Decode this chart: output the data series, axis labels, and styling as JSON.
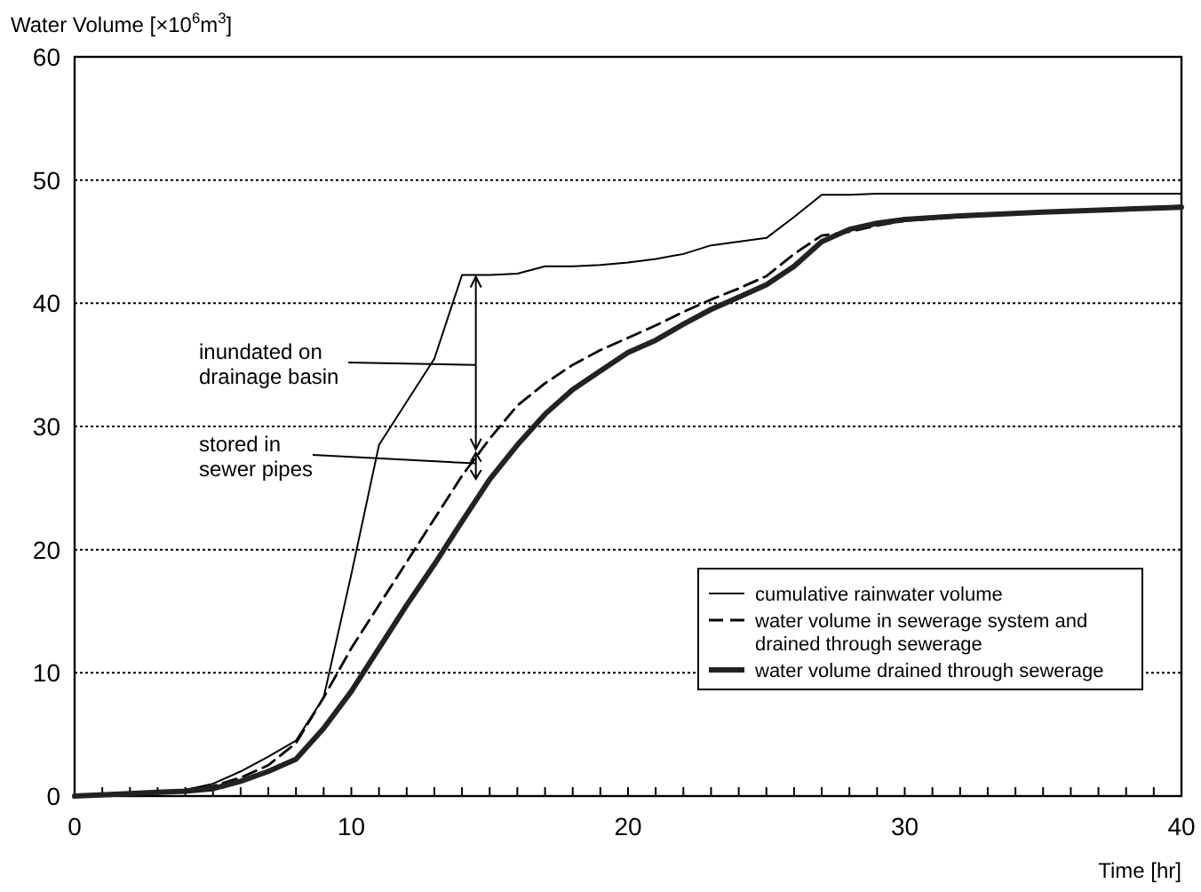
{
  "chart_data": {
    "type": "line",
    "ylabel": "Water Volume [×10$^{6}$m$^{3}$]",
    "xlabel": "Time [hr]",
    "x": [
      0,
      2,
      3,
      4,
      5,
      6,
      7,
      8,
      9,
      10,
      11,
      12,
      13,
      14,
      15,
      16,
      17,
      18,
      19,
      20,
      21,
      22,
      23,
      24,
      25,
      26,
      27,
      28,
      29,
      30,
      32,
      35,
      40
    ],
    "series": [
      {
        "name": "cumulative rainwater volume",
        "color": "#000000",
        "line_style": "solid",
        "values": [
          0,
          0.2,
          0.3,
          0.5,
          1,
          2,
          3.2,
          4.5,
          8,
          18,
          28.5,
          32,
          35.5,
          42.3,
          42.3,
          42.4,
          43,
          43,
          43.1,
          43.3,
          43.6,
          44,
          44.7,
          45,
          45.3,
          47,
          48.8,
          48.8,
          48.9,
          48.9,
          48.9,
          48.9,
          48.9
        ]
      },
      {
        "name": "water volume in sewerage system and drained through sewerage",
        "color": "#000000",
        "line_style": "dashed",
        "values": [
          0,
          0.2,
          0.3,
          0.5,
          0.8,
          1.5,
          2.5,
          4.3,
          8,
          12,
          15.5,
          19,
          22.5,
          26,
          29,
          31.7,
          33.5,
          35,
          36.2,
          37.2,
          38.2,
          39.3,
          40.3,
          41.2,
          42.2,
          44,
          45.5,
          45.8,
          46.3,
          46.7,
          47,
          47.4,
          47.9
        ]
      },
      {
        "name": "water volume drained through sewerage",
        "color": "#222222",
        "line_style": "solid",
        "values": [
          0,
          0.2,
          0.3,
          0.4,
          0.6,
          1.2,
          2,
          3,
          5.5,
          8.5,
          12,
          15.5,
          18.8,
          22.3,
          25.7,
          28.5,
          31,
          33,
          34.5,
          36,
          37,
          38.3,
          39.5,
          40.5,
          41.5,
          43,
          45,
          46,
          46.5,
          46.8,
          47.1,
          47.4,
          47.8
        ]
      }
    ],
    "xlim": [
      0,
      40
    ],
    "xticks": [
      0,
      {
        "value": 1,
        "label": null
      },
      {
        "value": 2,
        "label": null
      },
      {
        "value": 3,
        "label": null
      },
      {
        "value": 4,
        "label": null
      },
      {
        "value": 5,
        "label": null
      },
      {
        "value": 6,
        "label": null
      },
      {
        "value": 7,
        "label": null
      },
      {
        "value": 8,
        "label": null
      },
      {
        "value": 9,
        "label": null
      },
      10,
      {
        "value": 11,
        "label": null
      },
      {
        "value": 12,
        "label": null
      },
      {
        "value": 13,
        "label": null
      },
      {
        "value": 14,
        "label": null
      },
      {
        "value": 15,
        "label": null
      },
      {
        "value": 16,
        "label": null
      },
      {
        "value": 17,
        "label": null
      },
      {
        "value": 18,
        "label": null
      },
      {
        "value": 19,
        "label": null
      },
      20,
      {
        "value": 21,
        "label": null
      },
      {
        "value": 22,
        "label": null
      },
      {
        "value": 23,
        "label": null
      },
      {
        "value": 24,
        "label": null
      },
      {
        "value": 25,
        "label": null
      },
      {
        "value": 26,
        "label": null
      },
      {
        "value": 27,
        "label": null
      },
      {
        "value": 28,
        "label": null
      },
      {
        "value": 29,
        "label": null
      },
      30,
      {
        "value": 31,
        "label": null
      },
      {
        "value": 32,
        "label": null
      },
      {
        "value": 33,
        "label": null
      },
      {
        "value": 34,
        "label": null
      },
      {
        "value": 35,
        "label": null
      },
      {
        "value": 36,
        "label": null
      },
      {
        "value": 37,
        "label": null
      },
      {
        "value": 38,
        "label": null
      },
      {
        "value": 39,
        "label": null
      },
      40
    ],
    "ylim": [
      0,
      60
    ],
    "yticks": [
      0,
      10,
      20,
      30,
      40,
      50,
      60
    ],
    "grid": "y",
    "legend": "bottom right",
    "marker": "none",
    "annotations": [
      "inundated on\ndrainage basin",
      {
        "text": "stored in\nsewer pipes",
        "x": 14.5,
        "y": 27
      }
    ]
  }
}
